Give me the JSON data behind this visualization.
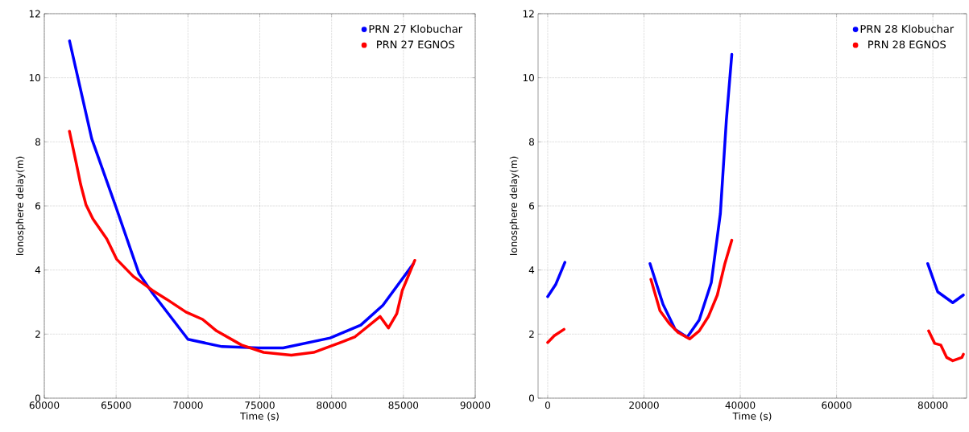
{
  "chart_data": [
    {
      "type": "line",
      "xlabel": "Time (s)",
      "ylabel": "Ionosphere delay(m)",
      "xlim": [
        60000,
        90000
      ],
      "ylim": [
        0,
        12
      ],
      "xticks": [
        60000,
        65000,
        70000,
        75000,
        80000,
        85000,
        90000
      ],
      "yticks": [
        0,
        2,
        4,
        6,
        8,
        10,
        12
      ],
      "grid": true,
      "legend": "top right",
      "series": [
        {
          "name": "PRN 27 Klobuchar",
          "color": "#0000ff",
          "x": [
            61757,
            63300,
            65000,
            66580,
            67550,
            70000,
            72370,
            74940,
            76620,
            79900,
            82030,
            83570,
            85700
          ],
          "values": [
            11.15,
            8.1,
            5.95,
            3.9,
            3.27,
            1.84,
            1.61,
            1.57,
            1.57,
            1.88,
            2.28,
            2.9,
            4.2
          ]
        },
        {
          "name": "PRN 27 EGNOS",
          "color": "#ff0000",
          "x": [
            61750,
            62240,
            62530,
            62900,
            63380,
            64350,
            65030,
            66200,
            67550,
            68510,
            69860,
            71020,
            71990,
            73730,
            75270,
            77200,
            78750,
            80680,
            81640,
            83380,
            83960,
            84540,
            84920,
            85790
          ],
          "values": [
            8.33,
            7.3,
            6.67,
            6.04,
            5.6,
            4.97,
            4.34,
            3.8,
            3.36,
            3.09,
            2.69,
            2.46,
            2.1,
            1.66,
            1.43,
            1.34,
            1.43,
            1.75,
            1.92,
            2.55,
            2.19,
            2.64,
            3.36,
            4.3
          ]
        }
      ]
    },
    {
      "type": "line",
      "xlabel": "Time (s)",
      "ylabel": "Ionosphere delay(m)",
      "xlim": [
        -2000,
        87000
      ],
      "ylim": [
        0,
        12
      ],
      "xticks": [
        0,
        20000,
        40000,
        60000,
        80000
      ],
      "yticks": [
        0,
        2,
        4,
        6,
        8,
        10,
        12
      ],
      "grid": true,
      "legend": "top right",
      "series": [
        {
          "name": "PRN 28 Klobuchar",
          "color": "#0000ff",
          "x": [
            0,
            1700,
            3570,
            12000,
            21250,
            23950,
            26460,
            28960,
            31470,
            33980,
            35860,
            37110,
            38240,
            60000,
            78930,
            81000,
            84130,
            86330
          ],
          "values": [
            3.17,
            3.56,
            4.24,
            null,
            4.2,
            2.93,
            2.15,
            1.9,
            2.44,
            3.61,
            5.76,
            8.68,
            10.73,
            null,
            4.2,
            3.32,
            2.98,
            3.22
          ]
        },
        {
          "name": "PRN 28 EGNOS",
          "color": "#ff0000",
          "x": [
            0,
            1380,
            3390,
            12000,
            21440,
            22380,
            23320,
            25200,
            27080,
            29470,
            31470,
            33350,
            35230,
            36800,
            38240,
            60000,
            79120,
            80380,
            81630,
            82880,
            84130,
            86010,
            86330
          ],
          "values": [
            1.74,
            1.95,
            2.15,
            null,
            3.71,
            3.22,
            2.73,
            2.34,
            2.05,
            1.85,
            2.1,
            2.54,
            3.22,
            4.2,
            4.93,
            null,
            2.1,
            1.71,
            1.66,
            1.27,
            1.17,
            1.27,
            1.37
          ]
        }
      ]
    }
  ]
}
